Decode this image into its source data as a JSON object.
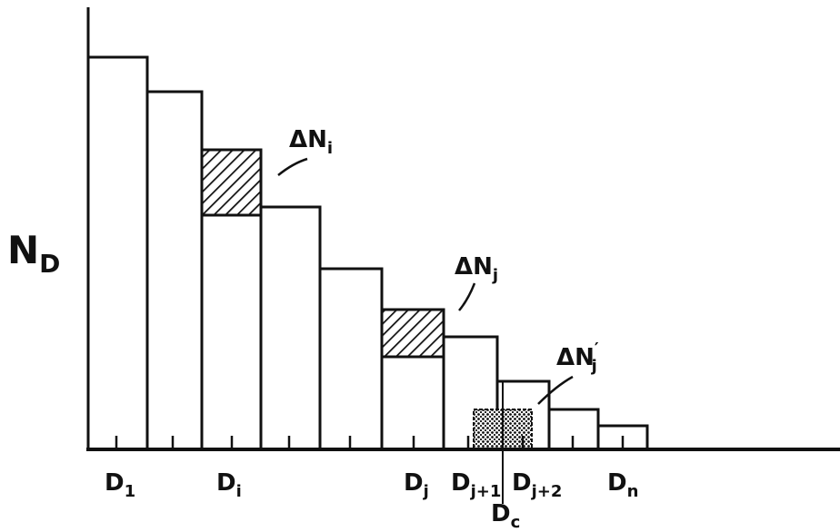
{
  "y_label": {
    "main": "N",
    "sub": "D"
  },
  "x_labels": [
    {
      "main": "D",
      "sub": "1"
    },
    {
      "main": "D",
      "sub": "i"
    },
    {
      "main": "D",
      "sub": "j"
    },
    {
      "main": "D",
      "sub": "j+1"
    },
    {
      "main": "D",
      "sub": "j+2"
    },
    {
      "main": "D",
      "sub": "n"
    },
    {
      "main": "D",
      "sub": "c"
    }
  ],
  "annotations": [
    {
      "main": "ΔN",
      "sub": "i"
    },
    {
      "main": "ΔN",
      "sub": "j"
    },
    {
      "main": "ΔN",
      "sub": "j",
      "prime": "′"
    }
  ]
}
